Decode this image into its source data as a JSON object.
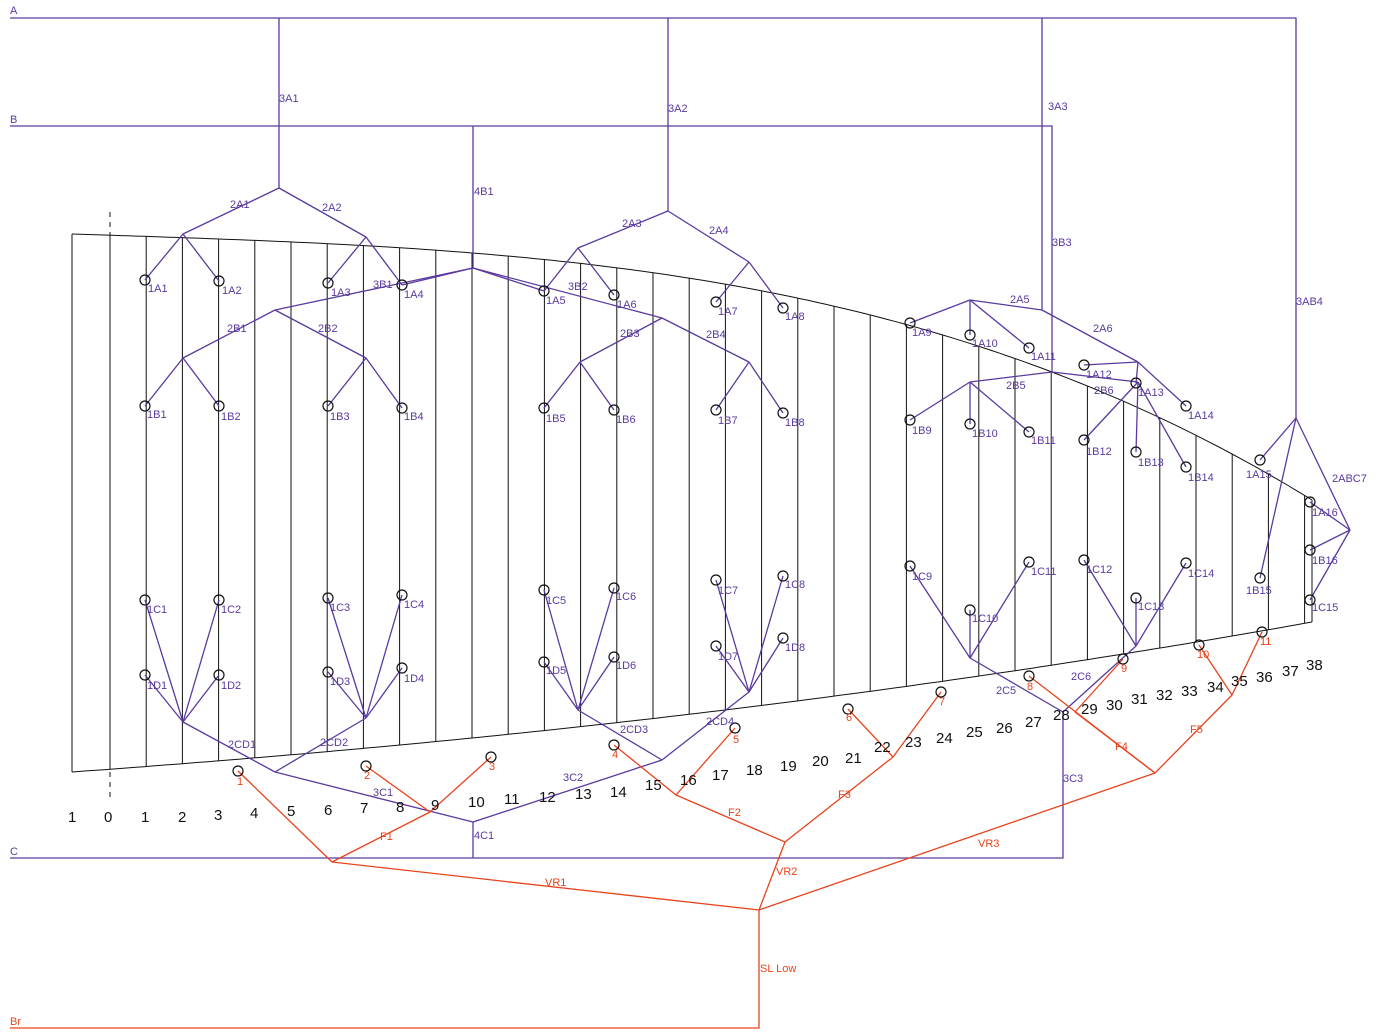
{
  "colors": {
    "upper": "#5a3a9e",
    "lower": "#e8431c",
    "outline": "#111111"
  },
  "risers": {
    "A": "A",
    "B": "B",
    "C": "C",
    "Br": "Br"
  },
  "rib_numbers": [
    "1",
    "0",
    "1",
    "2",
    "3",
    "4",
    "5",
    "6",
    "7",
    "8",
    "9",
    "10",
    "11",
    "12",
    "13",
    "14",
    "15",
    "16",
    "17",
    "18",
    "19",
    "20",
    "21",
    "22",
    "23",
    "24",
    "25",
    "26",
    "27",
    "28",
    "29",
    "30",
    "31",
    "32",
    "33",
    "34",
    "35",
    "36",
    "37",
    "38"
  ],
  "upper_labels": [
    "3A1",
    "3A2",
    "3A3",
    "3AB4",
    "4B1",
    "3B3",
    "2A1",
    "2A2",
    "2A3",
    "2A4",
    "2A5",
    "2A6",
    "2ABC7",
    "3B1",
    "3B2",
    "2B1",
    "2B2",
    "2B3",
    "2B4",
    "2B5",
    "2B6",
    "1A1",
    "1A2",
    "1A3",
    "1A4",
    "1A5",
    "1A6",
    "1A7",
    "1A8",
    "1A9",
    "1A10",
    "1A11",
    "1A12",
    "1A13",
    "1A14",
    "1A15",
    "1A16",
    "1B1",
    "1B2",
    "1B3",
    "1B4",
    "1B5",
    "1B6",
    "1B7",
    "1B8",
    "1B9",
    "1B10",
    "1B11",
    "1B12",
    "1B13",
    "1B14",
    "1B15",
    "1B16",
    "1C1",
    "1C2",
    "1C3",
    "1C4",
    "1C5",
    "1C6",
    "1C7",
    "1C8",
    "1C9",
    "1C10",
    "1C11",
    "1C12",
    "1C13",
    "1C14",
    "1C15",
    "1D1",
    "1D2",
    "1D3",
    "1D4",
    "1D5",
    "1D6",
    "1D7",
    "1D8",
    "2CD1",
    "2CD2",
    "2CD3",
    "2CD4",
    "2C5",
    "2C6",
    "3C1",
    "3C2",
    "3C3",
    "4C1"
  ],
  "lower_labels": [
    "1",
    "2",
    "3",
    "4",
    "5",
    "6",
    "7",
    "8",
    "9",
    "10",
    "11",
    "F1",
    "F2",
    "F3",
    "F4",
    "F5",
    "VR1",
    "VR2",
    "VR3",
    "SL Low"
  ]
}
